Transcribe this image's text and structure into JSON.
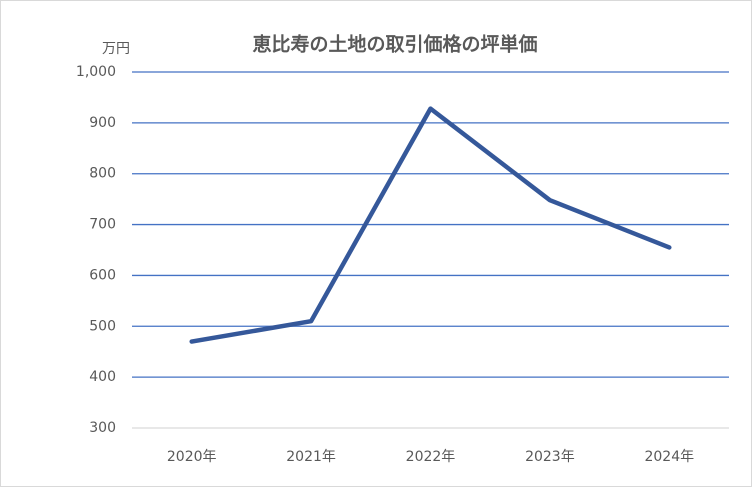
{
  "chart_data": {
    "type": "line",
    "title": "恵比寿の土地の取引価格の坪単価",
    "y_unit": "万円",
    "categories": [
      "2020年",
      "2021年",
      "2022年",
      "2023年",
      "2024年"
    ],
    "values": [
      470,
      510,
      928,
      748,
      655
    ],
    "color": "#35589a",
    "ylim": [
      300,
      1000
    ],
    "yticks": [
      300,
      400,
      500,
      600,
      700,
      800,
      900,
      {
        "value": 1000,
        "label": "1,000"
      }
    ],
    "grid": true,
    "grid_color": "#4472c4"
  }
}
